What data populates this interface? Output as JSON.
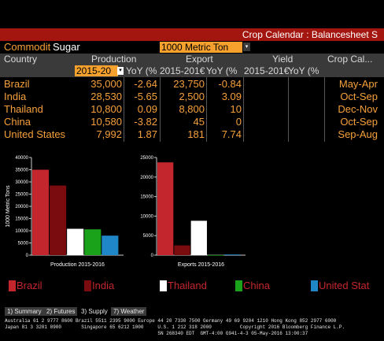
{
  "title": "Crop Calendar : Balancesheet S",
  "commodity_label": "Commodit",
  "commodity_value": "Sugar",
  "unit_value": "1000 Metric Ton",
  "headers": {
    "country": "Country",
    "production": "Production",
    "export": "Export",
    "yield": "Yield",
    "crop_cal": "Crop Cal..."
  },
  "subheaders": {
    "prod_period": "2015-20",
    "prod_yoy": "YoY (%",
    "export_period": "2015-201€",
    "export_yoy": "YoY (%",
    "yield_period": "2015-201€",
    "yield_yoy": "YoY (%"
  },
  "rows": [
    {
      "country": "Brazil",
      "production": "35,000",
      "prod_yoy": "-2.64",
      "export": "23,750",
      "exp_yoy": "-0.84",
      "crop_cal": "May-Apr"
    },
    {
      "country": "India",
      "production": "28,530",
      "prod_yoy": "-5.65",
      "export": "2,500",
      "exp_yoy": "3.09",
      "crop_cal": "Oct-Sep"
    },
    {
      "country": "Thailand",
      "production": "10,800",
      "prod_yoy": "0.09",
      "export": "8,800",
      "exp_yoy": "10",
      "crop_cal": "Dec-Nov"
    },
    {
      "country": "China",
      "production": "10,580",
      "prod_yoy": "-3.82",
      "export": "45",
      "exp_yoy": "0",
      "crop_cal": "Oct-Sep"
    },
    {
      "country": "United States",
      "production": "7,992",
      "prod_yoy": "1.87",
      "export": "181",
      "exp_yoy": "7.74",
      "crop_cal": "Sep-Aug"
    }
  ],
  "colors": {
    "brazil": "#c4262e",
    "india": "#7a0c0f",
    "thailand": "#ffffff",
    "china": "#1aa31a",
    "united_states": "#1f86c8",
    "amber": "#f6a03a",
    "title_bar": "#a3160f"
  },
  "chart_data": [
    {
      "type": "bar",
      "xlabel": "Production 2015-2016",
      "ylabel": "1000 Metric Tons",
      "ylim": [
        0,
        40000
      ],
      "yticks": [
        "0",
        "5000",
        "10000",
        "15000",
        "20000",
        "25000",
        "30000",
        "35000",
        "40000"
      ],
      "series": [
        {
          "name": "Brazil",
          "values": [
            35000
          ]
        },
        {
          "name": "India",
          "values": [
            28530
          ]
        },
        {
          "name": "Thailand",
          "values": [
            10800
          ]
        },
        {
          "name": "China",
          "values": [
            10580
          ]
        },
        {
          "name": "United Stat",
          "values": [
            7992
          ]
        }
      ]
    },
    {
      "type": "bar",
      "xlabel": "Exports 2015-2016",
      "ylabel": "",
      "ylim": [
        0,
        25000
      ],
      "yticks": [
        "0",
        "5000",
        "10000",
        "15000",
        "20000",
        "25000"
      ],
      "series": [
        {
          "name": "Brazil",
          "values": [
            23750
          ]
        },
        {
          "name": "India",
          "values": [
            2500
          ]
        },
        {
          "name": "Thailand",
          "values": [
            8800
          ]
        },
        {
          "name": "China",
          "values": [
            45
          ]
        },
        {
          "name": "United Stat",
          "values": [
            181
          ]
        }
      ]
    }
  ],
  "legend": [
    "Brazil",
    "India",
    "Thailand",
    "China",
    "United Stat"
  ],
  "function_keys": [
    "1) Summary",
    "2) Futures",
    "3) Supply",
    "7) Weather"
  ],
  "footer": [
    "Australia 61 2 9777 8600 Brazil 5511 2395 9000 Europe 44 20 7330 7500 Germany 49 69 9204 1210 Hong Kong 852 2977 6000",
    "Japan 81 3 3201 8900       Singapore 65 6212 1000     U.S. 1 212 318 2000          Copyright 2016 Bloomberg Finance L.P.",
    "                                                      SN 268340 EDT  GMT-4:00 G941-4-3 05-May-2016 13:00:37"
  ]
}
